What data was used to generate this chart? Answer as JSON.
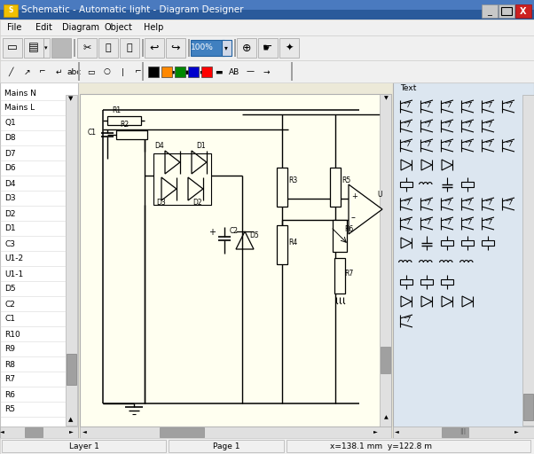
{
  "title_bar_text": "Schematic - Automatic light - Diagram Designer",
  "title_bar_bg": "#2a5a9b",
  "title_bar_text_color": "#ffffff",
  "window_bg": "#ece9d8",
  "menu_items": [
    "File",
    "Edit",
    "Diagram",
    "Object",
    "Help"
  ],
  "menu_bg": "#f0f0f0",
  "canvas_bg": "#fffff0",
  "sidebar_left_bg": "#ffffff",
  "sidebar_right_bg": "#dce6f0",
  "status_bar_text_layer": "Layer 1",
  "status_bar_text_page": "Page 1",
  "status_bar_text_coord": "x=138.1 mm  y=122.8 m",
  "component_list": [
    "Mains N",
    "Mains L",
    "Q1",
    "D8",
    "D7",
    "D6",
    "D4",
    "D3",
    "D2",
    "D1",
    "C3",
    "U1-2",
    "U1-1",
    "D5",
    "C2",
    "C1",
    "R10",
    "R9",
    "R8",
    "R7",
    "R6",
    "R5"
  ],
  "toolbar_bg": "#f0f0f0",
  "scrollbar_bg": "#e0e0e0",
  "scrollbar_thumb": "#a0a0a0",
  "highlight_box_color": "#4080c0",
  "highlight_box_text": "100%",
  "border_color": "#808080",
  "title_icon_color": "#ffcc00",
  "black": "#000000",
  "white": "#ffffff",
  "close_btn_color": "#cc2020",
  "separator_color": "#a0a0a0",
  "canvas_border": "#b0b0b0"
}
